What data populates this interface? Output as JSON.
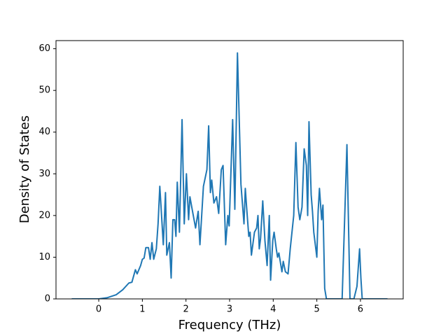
{
  "chart_data": {
    "type": "line",
    "xlabel": "Frequency (THz)",
    "ylabel": "Density of States",
    "color": "#1f77b4",
    "x": [
      -0.62,
      0,
      0.2,
      0.4,
      0.55,
      0.69,
      0.76,
      0.84,
      0.88,
      0.96,
      1.0,
      1.04,
      1.08,
      1.14,
      1.18,
      1.22,
      1.26,
      1.32,
      1.36,
      1.4,
      1.48,
      1.53,
      1.56,
      1.62,
      1.66,
      1.7,
      1.74,
      1.77,
      1.8,
      1.85,
      1.91,
      1.96,
      2.01,
      2.06,
      2.09,
      2.15,
      2.22,
      2.28,
      2.32,
      2.4,
      2.48,
      2.52,
      2.56,
      2.59,
      2.64,
      2.7,
      2.75,
      2.81,
      2.85,
      2.91,
      2.96,
      2.99,
      3.07,
      3.12,
      3.18,
      3.26,
      3.33,
      3.36,
      3.39,
      3.44,
      3.47,
      3.5,
      3.57,
      3.62,
      3.65,
      3.68,
      3.71,
      3.76,
      3.81,
      3.86,
      3.91,
      3.94,
      3.99,
      4.02,
      4.07,
      4.1,
      4.13,
      4.2,
      4.23,
      4.28,
      4.34,
      4.39,
      4.47,
      4.52,
      4.57,
      4.61,
      4.66,
      4.71,
      4.76,
      4.79,
      4.82,
      4.87,
      4.9,
      4.93,
      5.0,
      5.03,
      5.06,
      5.11,
      5.14,
      5.18,
      5.22,
      5.58,
      5.64,
      5.69,
      5.76,
      5.85,
      5.92,
      5.98,
      6.01,
      6.04,
      6.62
    ],
    "values": [
      0,
      0,
      0.3,
      1.0,
      2.2,
      3.8,
      4.0,
      7,
      6,
      8,
      9.5,
      9.8,
      12.3,
      12.3,
      9.5,
      13.5,
      9.5,
      12,
      18,
      27,
      13,
      25.5,
      10.5,
      13.5,
      5,
      19,
      19,
      15,
      28,
      16,
      43,
      18,
      30,
      19,
      24.5,
      21,
      17,
      21,
      13,
      27,
      31,
      41.5,
      25.5,
      28.5,
      23,
      24.5,
      20.5,
      31,
      32,
      13,
      20,
      17.5,
      43,
      21.5,
      59,
      27.5,
      18,
      26.5,
      22,
      15,
      16,
      10.5,
      16,
      17,
      20,
      12,
      14.5,
      23.5,
      14,
      8,
      20,
      4.5,
      14,
      16,
      12,
      10,
      11,
      6.5,
      9,
      6.5,
      6,
      12,
      20,
      37.5,
      22,
      19,
      22,
      36,
      32,
      20,
      42.5,
      25,
      21,
      16,
      10,
      21,
      26.5,
      19,
      22.5,
      2.5,
      0,
      0,
      20,
      37,
      0,
      0,
      3,
      12,
      5,
      0,
      0
    ],
    "xlim": [
      -0.98,
      6.98
    ],
    "xticks": [
      0,
      1,
      2,
      3,
      4,
      5,
      6
    ],
    "ylim": [
      0,
      61.95
    ],
    "yticks": [
      0,
      10,
      20,
      30,
      40,
      50,
      60
    ]
  }
}
